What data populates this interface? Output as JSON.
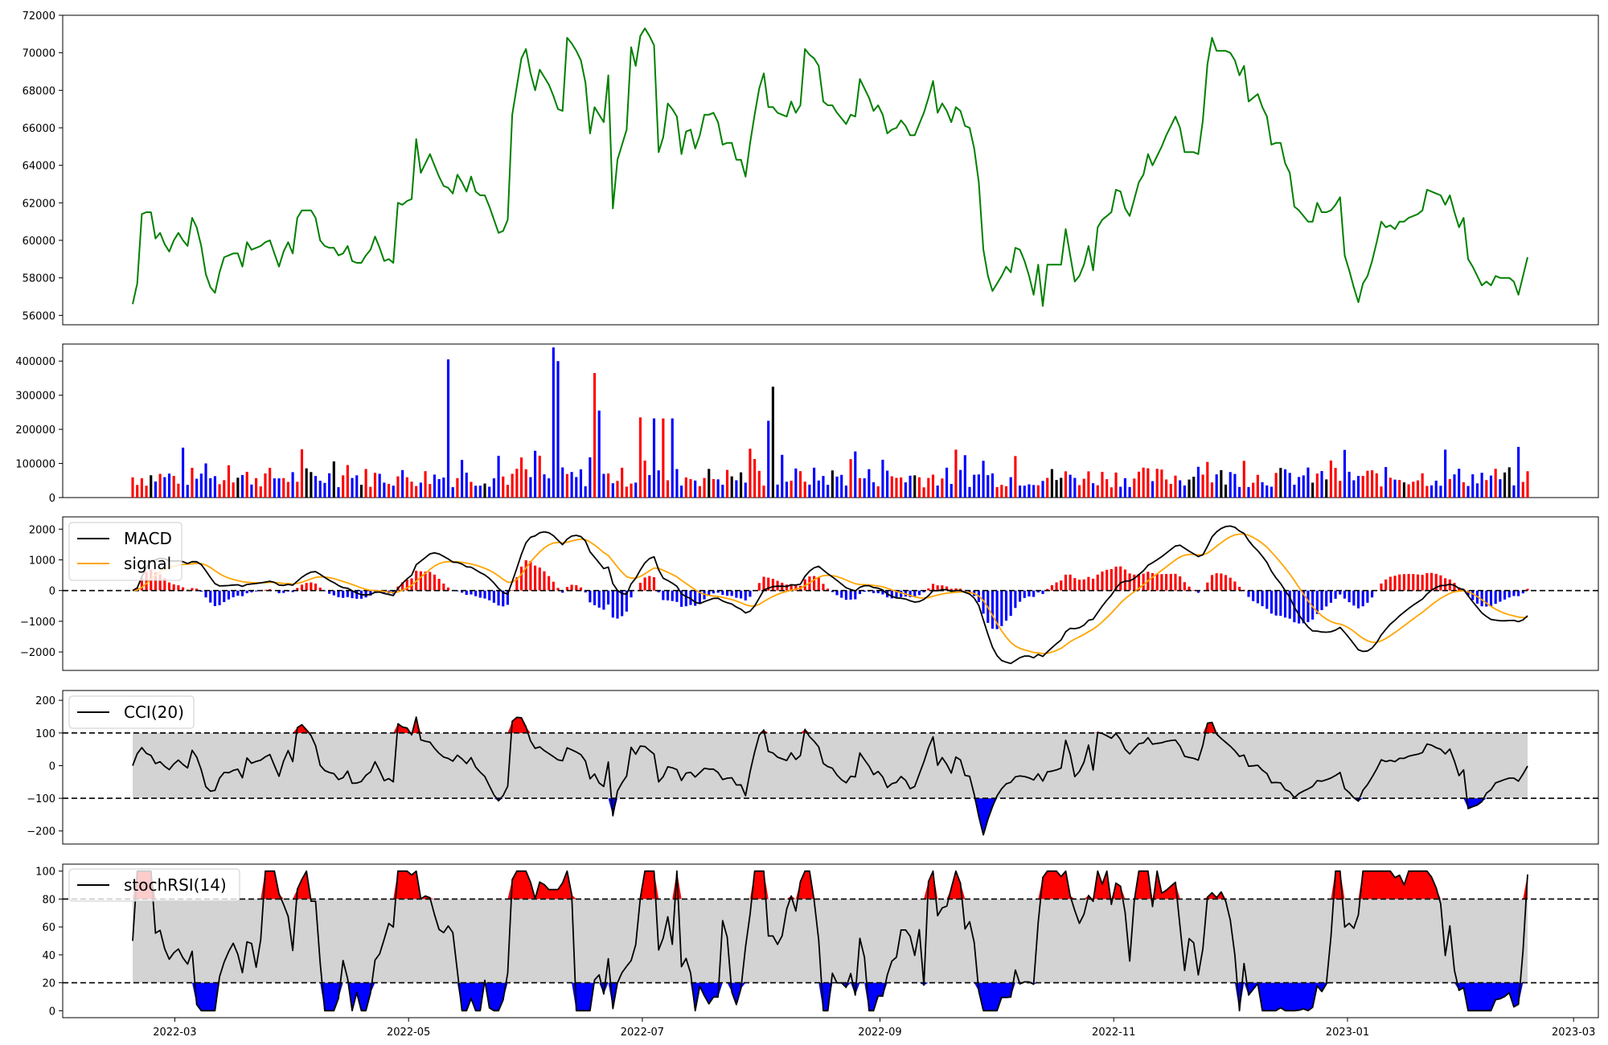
{
  "colors": {
    "price": "#008000",
    "vol_up": "#ff0000",
    "vol_down": "#0000ff",
    "vol_flat": "#000000",
    "macd": "#000000",
    "signal": "#ffa500",
    "hist_pos": "#ff0000",
    "hist_neg": "#0000ff",
    "band_fill": "#d3d3d3",
    "over_fill": "#ff0000",
    "under_fill": "#0000ff"
  },
  "chart_data": [
    {
      "type": "line",
      "panel": "price",
      "ylim": [
        55500,
        72000
      ],
      "yticks": [
        "56000",
        "58000",
        "60000",
        "62000",
        "64000",
        "66000",
        "68000",
        "70000",
        "72000"
      ],
      "x_start": "2022-02-18",
      "x_end": "2023-02-17",
      "values": [
        56600,
        57700,
        61400,
        61500,
        61500,
        60100,
        60400,
        59800,
        59400,
        60000,
        60400,
        60000,
        59700,
        61200,
        60700,
        59700,
        58200,
        57500,
        57200,
        58300,
        59100,
        59200,
        59300,
        59300,
        58600,
        59900,
        59500,
        59600,
        59700,
        59900,
        60000,
        59300,
        58600,
        59400,
        59900,
        59300,
        61200,
        61600,
        61600,
        61600,
        61200,
        60000,
        59700,
        59600,
        59600,
        59200,
        59300,
        59700,
        58900,
        58800,
        58800,
        59200,
        59500,
        60200,
        59600,
        58900,
        59000,
        58800,
        62000,
        61900,
        62100,
        62200,
        65400,
        63600,
        64100,
        64600,
        64000,
        63400,
        62900,
        62800,
        62500,
        63500,
        63100,
        62600,
        63400,
        62600,
        62400,
        62400,
        61800,
        61100,
        60400,
        60500,
        61100,
        66700,
        68200,
        69700,
        70200,
        68900,
        68000,
        69100,
        68700,
        68300,
        67700,
        67000,
        66900,
        70800,
        70500,
        70100,
        69600,
        68400,
        65700,
        67100,
        66700,
        66300,
        68800,
        61700,
        64300,
        65100,
        65900,
        70300,
        69300,
        70900,
        71300,
        70900,
        70400,
        64700,
        65500,
        67300,
        67000,
        66600,
        64600,
        65800,
        65900,
        64900,
        65600,
        66700,
        66700,
        66800,
        66300,
        65100,
        65200,
        65200,
        64300,
        64300,
        63400,
        65200,
        66700,
        68100,
        68900,
        67100,
        67100,
        66800,
        66700,
        66600,
        67400,
        66800,
        67200,
        70200,
        69900,
        69700,
        69300,
        67400,
        67200,
        67200,
        66800,
        66500,
        66200,
        66700,
        66600,
        68600,
        68100,
        67600,
        66900,
        67200,
        66700,
        65700,
        65900,
        66000,
        66400,
        66100,
        65600,
        65600,
        66200,
        66800,
        67600,
        68500,
        66800,
        67300,
        66900,
        66300,
        67100,
        66900,
        66100,
        66000,
        64900,
        63100,
        59500,
        58100,
        57300,
        57700,
        58100,
        58600,
        58300,
        59600,
        59500,
        58900,
        58100,
        57100,
        58700,
        56500,
        58700,
        58700,
        58700,
        58700,
        60600,
        59200,
        57800,
        58100,
        58700,
        59700,
        58400,
        60700,
        61100,
        61300,
        61500,
        62700,
        62600,
        61700,
        61300,
        62200,
        63100,
        63500,
        64600,
        64000,
        64500,
        65000,
        65600,
        66100,
        66600,
        66000,
        64700,
        64700,
        64700,
        64600,
        66400,
        69400,
        70800,
        70100,
        70100,
        70100,
        70000,
        69600,
        68800,
        69300,
        67400,
        67600,
        67800,
        67100,
        66600,
        65100,
        65200,
        65200,
        64100,
        63600,
        61800,
        61600,
        61300,
        61000,
        61000,
        62000,
        61500,
        61500,
        61600,
        61900,
        62300,
        59200,
        58400,
        57500,
        56700,
        57700,
        58100,
        58900,
        59900,
        61000,
        60700,
        60800,
        60600,
        61000,
        61000,
        61200,
        61300,
        61400,
        61600,
        62700,
        62600,
        62500,
        62400,
        61900,
        62400,
        61500,
        60700,
        61200,
        59000,
        58600,
        58100,
        57600,
        57800,
        57600,
        58100,
        58000,
        58000,
        58000,
        57800,
        57100,
        58100,
        59100
      ]
    },
    {
      "type": "bar",
      "panel": "volume",
      "ylim": [
        0,
        450000
      ],
      "yticks": [
        "0",
        "100000",
        "200000",
        "300000",
        "400000"
      ]
    },
    {
      "type": "line",
      "panel": "macd",
      "ylim": [
        -2600,
        2400
      ],
      "yticks": [
        "−2000",
        "−1000",
        "0",
        "1000",
        "2000"
      ],
      "series": [
        {
          "name": "MACD"
        },
        {
          "name": "signal"
        }
      ],
      "reference_line": 0
    },
    {
      "type": "area",
      "panel": "cci",
      "ylim": [
        -240,
        230
      ],
      "yticks": [
        "−200",
        "−100",
        "0",
        "100",
        "200"
      ],
      "series": [
        {
          "name": "CCI(20)"
        }
      ],
      "reference_lines": [
        100,
        -100
      ]
    },
    {
      "type": "area",
      "panel": "stochrsi",
      "ylim": [
        -5,
        105
      ],
      "yticks": [
        "0",
        "20",
        "40",
        "60",
        "80",
        "100"
      ],
      "series": [
        {
          "name": "stochRSI(14)"
        }
      ],
      "reference_lines": [
        80,
        20
      ]
    }
  ],
  "xaxis": {
    "ticks": [
      "2022-03",
      "2022-05",
      "2022-07",
      "2022-09",
      "2022-11",
      "2023-01",
      "2023-03"
    ]
  }
}
